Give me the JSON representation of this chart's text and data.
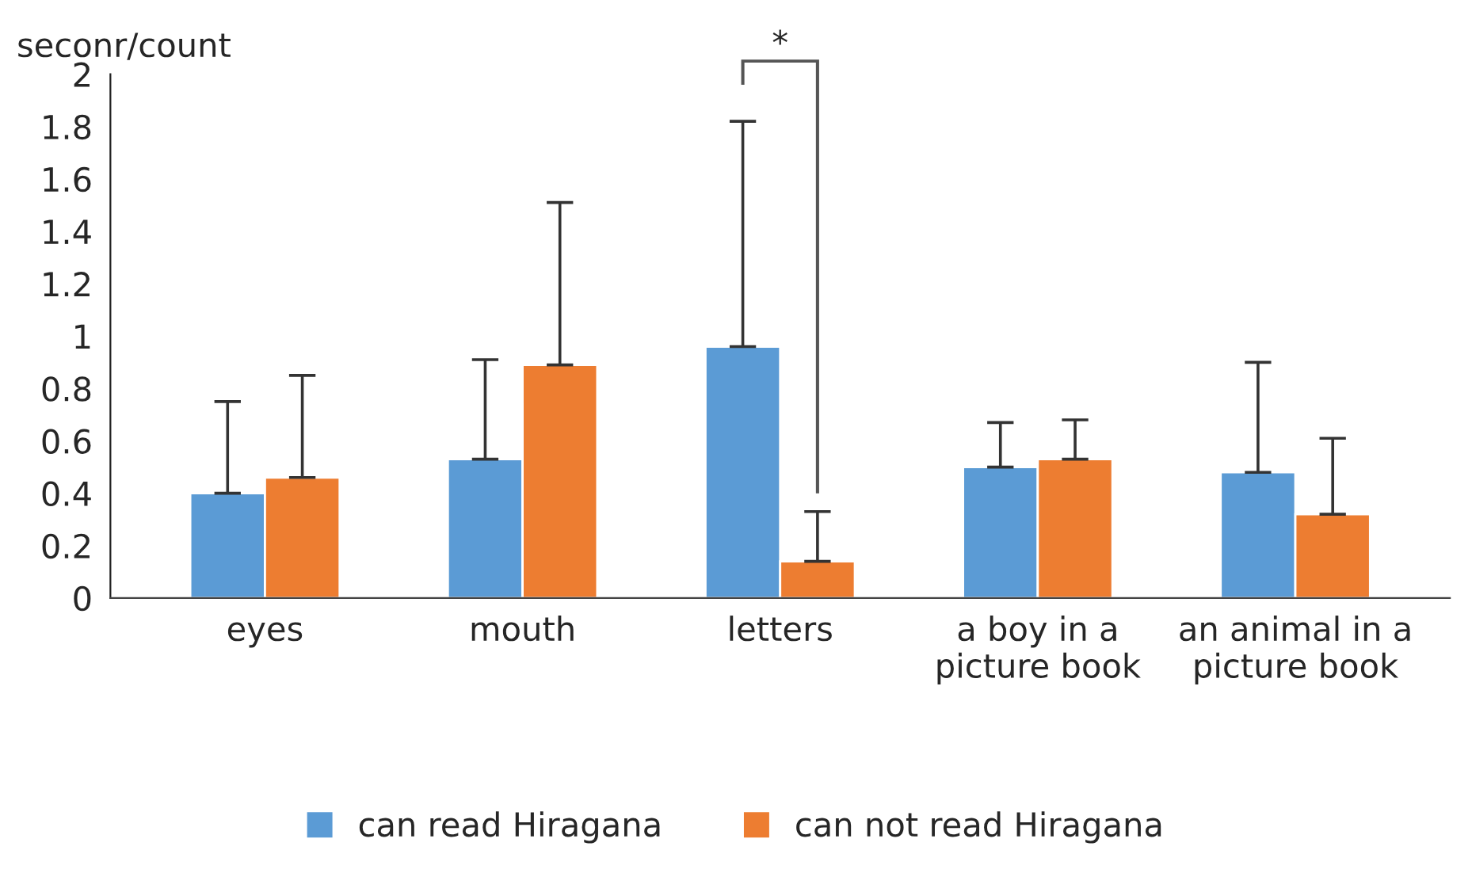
{
  "chart_data": {
    "type": "bar",
    "ylabel": "seconr/count",
    "categories": [
      "eyes",
      "mouth",
      "letters",
      "a boy in a\npicture book",
      "an animal in a\npicture book"
    ],
    "series": [
      {
        "name": "can read Hiragana",
        "color": "#5b9bd5",
        "values": [
          0.4,
          0.53,
          0.96,
          0.5,
          0.48
        ],
        "errors": [
          [
            0.4,
            0.75
          ],
          [
            0.53,
            0.91
          ],
          [
            0.96,
            1.82
          ],
          [
            0.5,
            0.67
          ],
          [
            0.48,
            0.9
          ]
        ]
      },
      {
        "name": "can not read Hiragana",
        "color": "#ed7d31",
        "values": [
          0.46,
          0.89,
          0.14,
          0.53,
          0.32
        ],
        "errors": [
          [
            0.46,
            0.85
          ],
          [
            0.89,
            1.51
          ],
          [
            0.14,
            0.33
          ],
          [
            0.53,
            0.68
          ],
          [
            0.32,
            0.61
          ]
        ]
      }
    ],
    "ylim": [
      0,
      2
    ],
    "yticks": [
      0,
      0.2,
      0.4,
      0.6,
      0.8,
      1,
      1.2,
      1.4,
      1.6,
      1.8,
      2
    ],
    "annotations": [
      "*"
    ],
    "grid": false,
    "legend": "bottom"
  }
}
